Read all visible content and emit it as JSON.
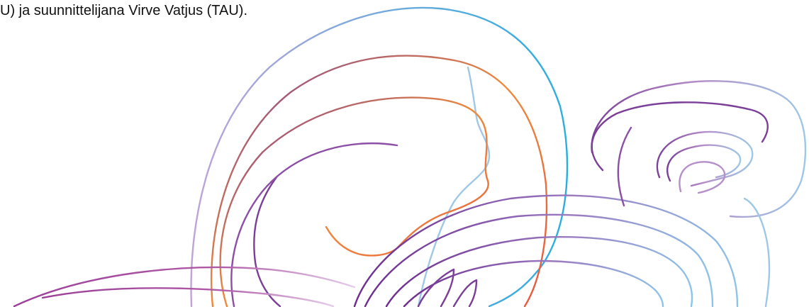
{
  "document": {
    "text_line": "U) ja suunnittelijana Virve Vatjus (TAU)."
  },
  "decoration": {
    "colors": {
      "purple": "#7b3f98",
      "pink": "#b05aa6",
      "lavender": "#c0a4d8",
      "light_blue": "#9ec8e6",
      "blue": "#29aee0",
      "orange": "#ee8a3c",
      "red": "#e8573f"
    }
  }
}
